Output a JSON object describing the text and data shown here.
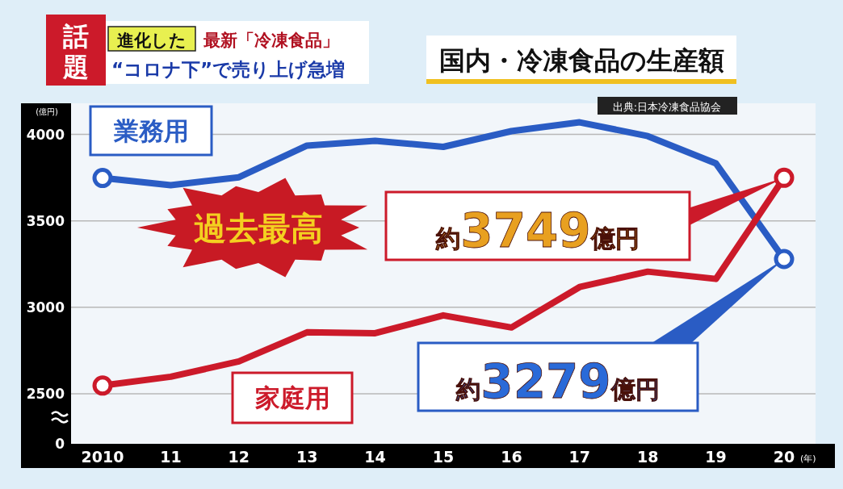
{
  "chart_data": {
    "type": "line",
    "title": "国内・冷凍食品の生産額",
    "xlabel": "(年)",
    "ylabel": "(億円)",
    "categories": [
      "2010",
      "11",
      "12",
      "13",
      "14",
      "15",
      "16",
      "17",
      "18",
      "19",
      "20"
    ],
    "series": [
      {
        "name": "業務用",
        "color": "#2a5cc4",
        "values": [
          3748,
          3706,
          3752,
          3935,
          3963,
          3928,
          4019,
          4070,
          3990,
          3832,
          3279
        ]
      },
      {
        "name": "家庭用",
        "color": "#cc1a2a",
        "values": [
          2547,
          2598,
          2687,
          2855,
          2850,
          2953,
          2883,
          3117,
          3206,
          3164,
          3749
        ]
      }
    ],
    "ylim": [
      2210,
      4180
    ],
    "yticks": [
      2500,
      3000,
      3500,
      4000
    ],
    "grid": "y",
    "annotations": [
      "話題",
      "進化した",
      "最新「冷凍食品」",
      "“コロナ下”で売り上げ急増",
      "出典:日本冷凍食品協会",
      "過去最高",
      "約3749億円",
      "約3279億円",
      "0"
    ]
  }
}
